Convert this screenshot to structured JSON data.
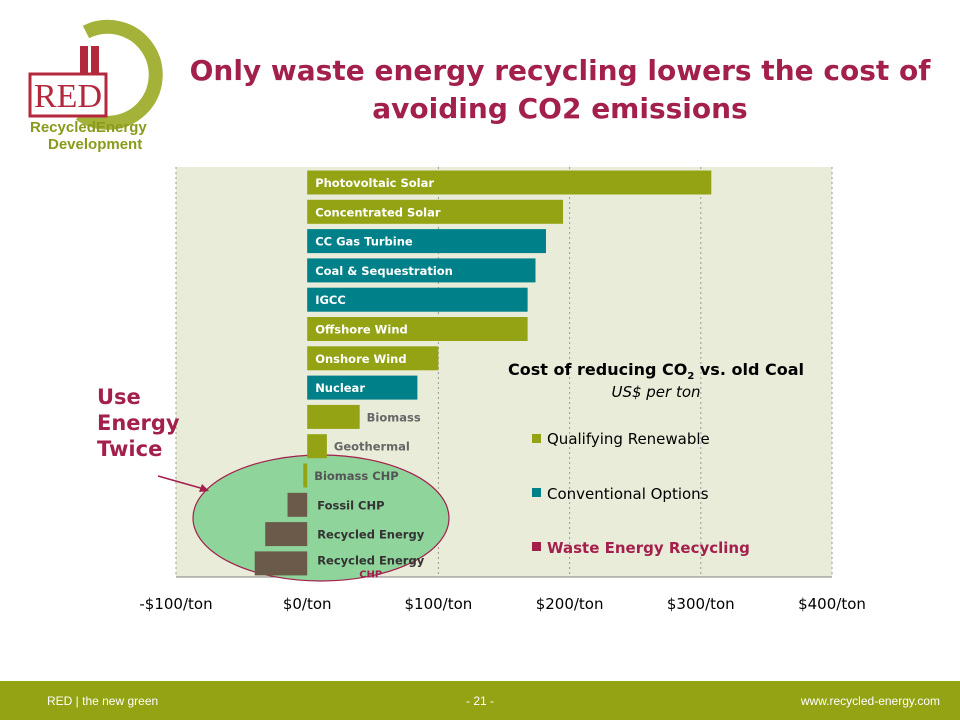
{
  "slide": {
    "title": "Only waste energy recycling lowers the cost of avoiding CO2 emissions",
    "side_label": "Use\nEnergy\nTwice"
  },
  "logo": {
    "mark": "RED",
    "line1": "RecycledEnergy",
    "line2": "Development",
    "colors": {
      "red": "#b3283d",
      "green": "#8a9a1b",
      "ring": "#a5b23a"
    }
  },
  "legend": {
    "title_prefix": "Cost of reducing CO",
    "title_sub": "2",
    "title_suffix": " vs. old Coal",
    "subtitle": "US$ per ton",
    "items": [
      {
        "label": "Qualifying Renewable",
        "color": "#94a313"
      },
      {
        "label": "Conventional Options",
        "color": "#00818a"
      },
      {
        "label": "Waste Energy Recycling",
        "color": "#a31f4c"
      }
    ]
  },
  "chart_data": {
    "type": "bar",
    "orientation": "horizontal",
    "title": "Cost of reducing CO2 vs. old Coal",
    "subtitle": "US$ per ton",
    "xlim": [
      -100,
      400
    ],
    "x_ticks": [
      -100,
      0,
      100,
      200,
      300,
      400
    ],
    "x_tick_labels": [
      "-$100/ton",
      "$0/ton",
      "$100/ton",
      "$200/ton",
      "$300/ton",
      "$400/ton"
    ],
    "grid": true,
    "legend_position": "center-right",
    "categories": [
      "Photovoltaic Solar",
      "Concentrated Solar",
      "CC Gas Turbine",
      "Coal & Sequestration",
      "IGCC",
      "Offshore Wind",
      "Onshore Wind",
      "Nuclear",
      "Biomass",
      "Geothermal",
      "Biomass CHP",
      "Fossil CHP",
      "Recycled Energy",
      "Recycled Energy CHP"
    ],
    "values": [
      308,
      195,
      182,
      174,
      168,
      168,
      100,
      84,
      40,
      15,
      -3,
      -15,
      -32,
      -40
    ],
    "groups": [
      "Qualifying Renewable",
      "Qualifying Renewable",
      "Conventional Options",
      "Conventional Options",
      "Conventional Options",
      "Qualifying Renewable",
      "Qualifying Renewable",
      "Conventional Options",
      "Qualifying Renewable",
      "Qualifying Renewable",
      "Qualifying Renewable",
      "Waste Energy Recycling",
      "Waste Energy Recycling",
      "Waste Energy Recycling"
    ],
    "colors": {
      "Qualifying Renewable": "#94a313",
      "Conventional Options": "#00818a",
      "Waste Energy Recycling": "#6b5a4a",
      "recycling_highlight": "#a31f4c",
      "highlight_ellipse": "#8fd49a",
      "plot_background": "#e9ecd9"
    }
  },
  "footer": {
    "left": "RED | the new green",
    "center": "- 21 -",
    "right": "www.recycled-energy.com"
  }
}
